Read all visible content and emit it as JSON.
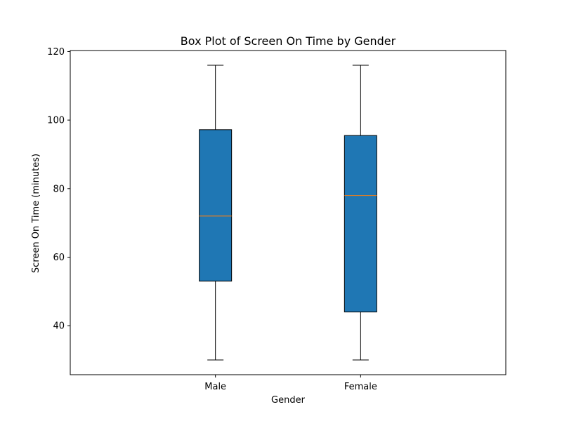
{
  "chart_data": {
    "type": "box",
    "title": "Box Plot of Screen On Time by Gender",
    "xlabel": "Gender",
    "ylabel": "Screen On Time (minutes)",
    "categories": [
      "Male",
      "Female"
    ],
    "boxes": [
      {
        "category": "Male",
        "whisker_low": 30,
        "q1": 53,
        "median": 72,
        "q3": 97.2,
        "whisker_high": 116
      },
      {
        "category": "Female",
        "whisker_low": 30,
        "q1": 44,
        "median": 78,
        "q3": 95.5,
        "whisker_high": 116
      }
    ],
    "ylim": [
      25.7,
      120.3
    ],
    "yticks": [
      40,
      60,
      80,
      100,
      120
    ],
    "grid": false,
    "colors": {
      "box_fill": "#1f77b4",
      "median": "#ff7f0e",
      "edge": "#000000"
    }
  }
}
